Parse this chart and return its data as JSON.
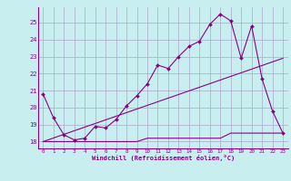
{
  "background_color": "#c8eef0",
  "grid_color": "#aaaacc",
  "line_color": "#880088",
  "marker_color": "#880088",
  "xlabel": "Windchill (Refroidissement éolien,°C)",
  "xlabel_color": "#880088",
  "tick_color": "#880088",
  "ylim": [
    17.6,
    25.9
  ],
  "xlim": [
    -0.5,
    23.5
  ],
  "yticks": [
    18,
    19,
    20,
    21,
    22,
    23,
    24,
    25
  ],
  "xticks": [
    0,
    1,
    2,
    3,
    4,
    5,
    6,
    7,
    8,
    9,
    10,
    11,
    12,
    13,
    14,
    15,
    16,
    17,
    18,
    19,
    20,
    21,
    22,
    23
  ],
  "line1_x": [
    0,
    1,
    2,
    3,
    4,
    5,
    6,
    7,
    8,
    9,
    10,
    11,
    12,
    13,
    14,
    15,
    16,
    17,
    18,
    19,
    20,
    21,
    22,
    23
  ],
  "line1_y": [
    20.8,
    19.4,
    18.4,
    18.1,
    18.2,
    18.9,
    18.8,
    19.3,
    20.1,
    20.7,
    21.4,
    22.5,
    22.3,
    23.0,
    23.6,
    23.9,
    24.9,
    25.5,
    25.1,
    22.9,
    24.8,
    21.7,
    19.8,
    18.5
  ],
  "line2_x": [
    0,
    1,
    2,
    3,
    4,
    5,
    6,
    7,
    8,
    9,
    10,
    11,
    12,
    13,
    14,
    15,
    16,
    17,
    18,
    19,
    20,
    21,
    22,
    23
  ],
  "line2_y": [
    18.0,
    18.0,
    18.0,
    18.0,
    18.0,
    18.0,
    18.0,
    18.0,
    18.0,
    18.0,
    18.2,
    18.2,
    18.2,
    18.2,
    18.2,
    18.2,
    18.2,
    18.2,
    18.5,
    18.5,
    18.5,
    18.5,
    18.5,
    18.5
  ],
  "line3_x": [
    0,
    23
  ],
  "line3_y": [
    18.0,
    22.9
  ]
}
